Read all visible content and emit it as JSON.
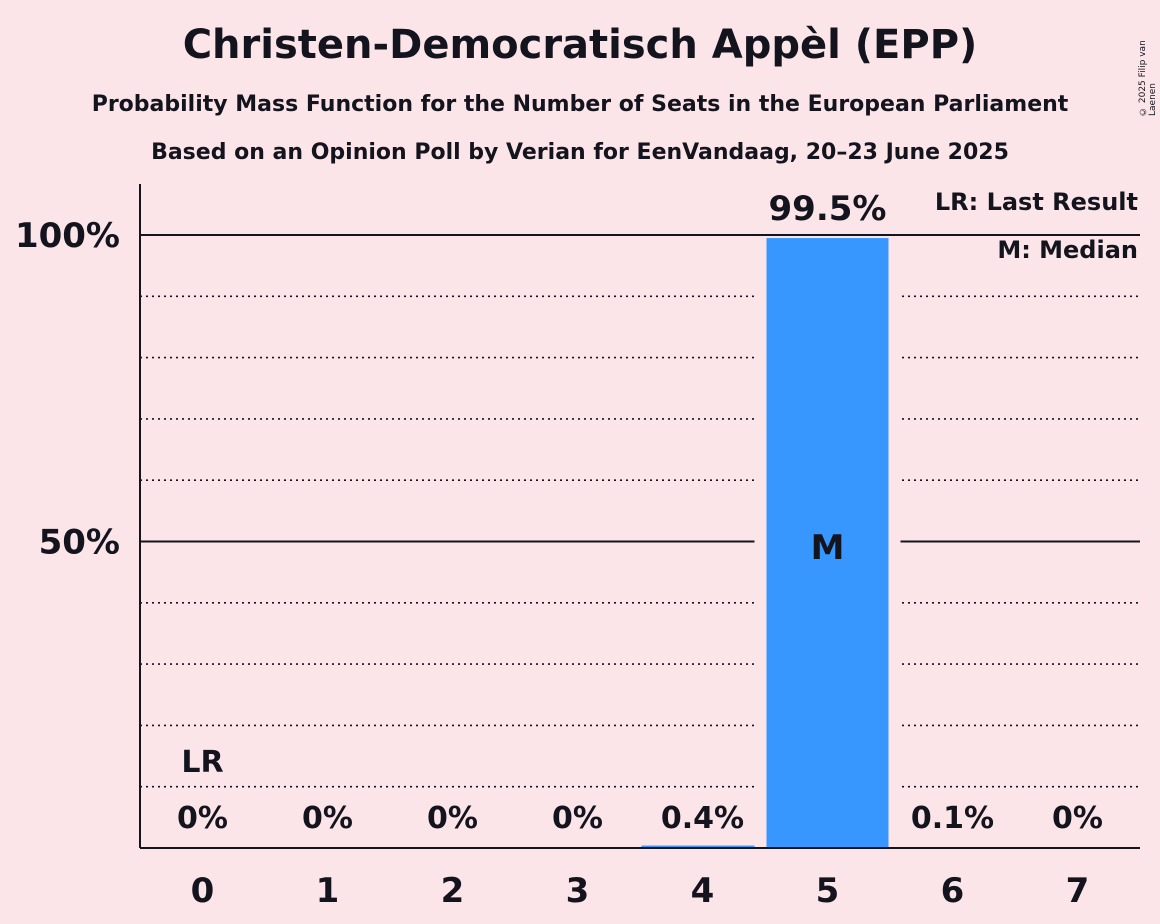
{
  "header": {
    "title": "Christen-Democratisch Appèl (EPP)",
    "subtitle": "Probability Mass Function for the Number of Seats in the European Parliament",
    "source_line": "Based on an Opinion Poll by Verian for EenVandaag, 20–23 June 2025",
    "copyright": "© 2025 Filip van Laenen"
  },
  "legend": {
    "last_result": "LR: Last Result",
    "median": "M: Median"
  },
  "colors": {
    "background": "#FBE5E8",
    "bar": "#3797FF",
    "text": "#14141e"
  },
  "chart_data": {
    "type": "bar",
    "categories": [
      "0",
      "1",
      "2",
      "3",
      "4",
      "5",
      "6",
      "7"
    ],
    "values": [
      0,
      0,
      0,
      0,
      0.4,
      99.5,
      0.1,
      0
    ],
    "value_labels": [
      "0%",
      "0%",
      "0%",
      "0%",
      "0.4%",
      "99.5%",
      "0.1%",
      "0%"
    ],
    "y_ticks": [
      {
        "value": 50,
        "label": "50%"
      },
      {
        "value": 100,
        "label": "100%"
      }
    ],
    "ylim": [
      0,
      100
    ],
    "gridlines_dotted_every": 10,
    "last_result_category": "0",
    "last_result_marker": "LR",
    "median_category": "5",
    "median_marker": "M",
    "legend_position": "top-right"
  }
}
